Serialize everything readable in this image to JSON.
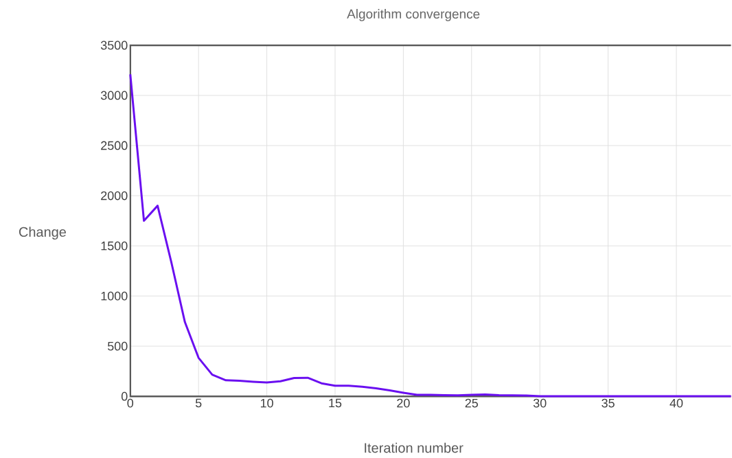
{
  "chart_data": {
    "type": "line",
    "title": "Algorithm convergence",
    "xlabel": "Iteration number",
    "ylabel": "Change",
    "x": [
      0,
      1,
      2,
      3,
      4,
      5,
      6,
      7,
      8,
      9,
      10,
      11,
      12,
      13,
      14,
      15,
      16,
      17,
      18,
      19,
      20,
      21,
      22,
      23,
      24,
      25,
      26,
      27,
      28,
      29,
      30,
      31,
      32,
      33,
      34,
      35,
      36,
      37,
      38,
      39,
      40,
      41,
      42,
      43,
      44
    ],
    "values": [
      3210,
      1750,
      1900,
      1340,
      740,
      384,
      216,
      160,
      155,
      145,
      138,
      150,
      183,
      185,
      130,
      106,
      105,
      95,
      80,
      60,
      36,
      15,
      15,
      12,
      10,
      15,
      18,
      12,
      10,
      8,
      2,
      1,
      1,
      1,
      1,
      1,
      1,
      1,
      1,
      1,
      1,
      1,
      1,
      1,
      1
    ],
    "color": "#6a0ff0",
    "xlim": [
      0,
      44
    ],
    "ylim": [
      0,
      3500
    ],
    "xticks": [
      0,
      5,
      10,
      15,
      20,
      25,
      30,
      35,
      40
    ],
    "yticks": [
      0,
      500,
      1000,
      1500,
      2000,
      2500,
      3000,
      3500
    ],
    "grid": true
  }
}
